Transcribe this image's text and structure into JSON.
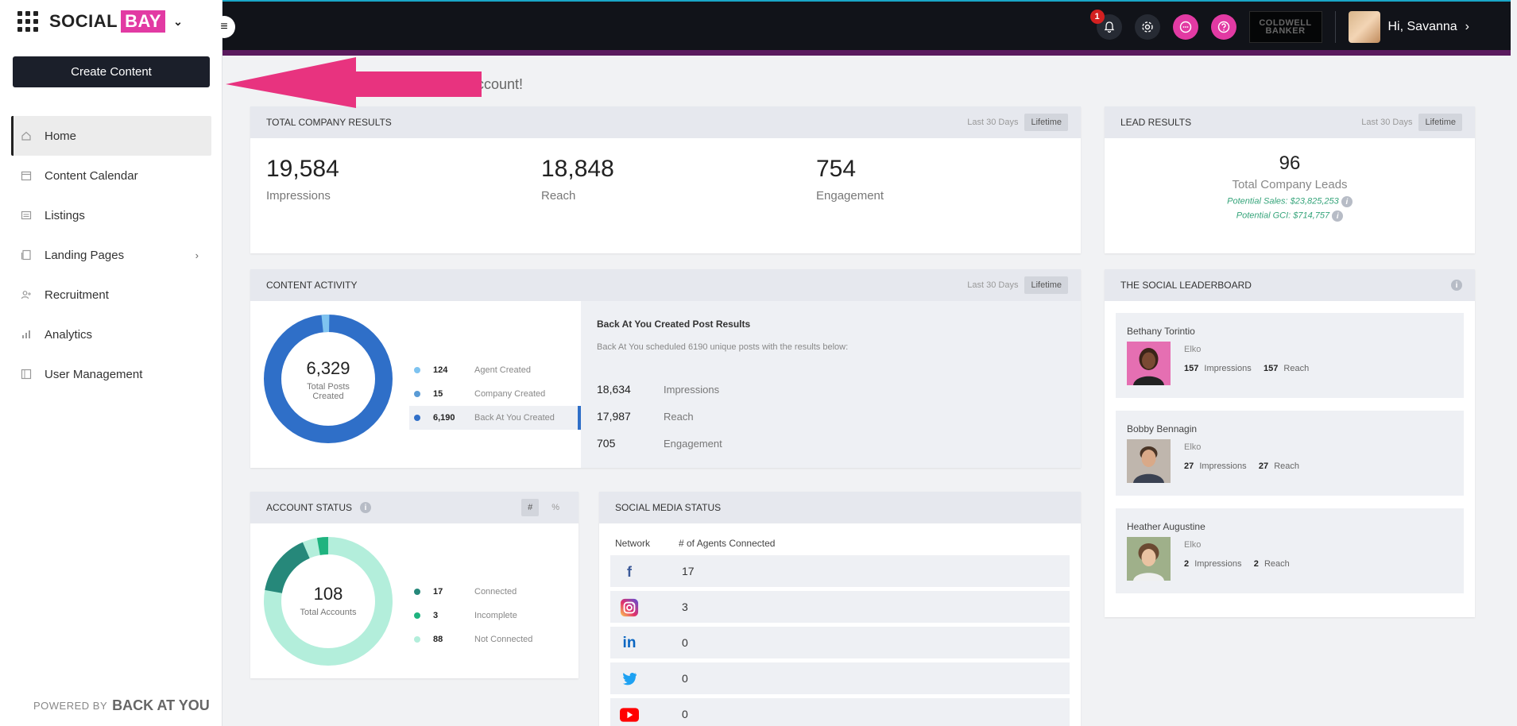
{
  "header": {
    "notification_count": "1",
    "brand_logo_text": "COLDWELL BANKER",
    "greeting": "Hi, Savanna"
  },
  "sidebar": {
    "logo_word1": "SOCIAL",
    "logo_word2": "BAY",
    "create_button": "Create Content",
    "items": [
      {
        "label": "Home"
      },
      {
        "label": "Content Calendar"
      },
      {
        "label": "Listings"
      },
      {
        "label": "Landing Pages"
      },
      {
        "label": "Recruitment"
      },
      {
        "label": "Analytics"
      },
      {
        "label": "User Management"
      }
    ],
    "powered_by": "POWERED BY",
    "powered_brand": "BACK AT YOU"
  },
  "welcome_text": "ccount!",
  "company_results": {
    "title": "TOTAL COMPANY RESULTS",
    "range_30": "Last 30 Days",
    "range_life": "Lifetime",
    "impressions": "19,584",
    "impressions_label": "Impressions",
    "reach": "18,848",
    "reach_label": "Reach",
    "engagement": "754",
    "engagement_label": "Engagement"
  },
  "lead_results": {
    "title": "LEAD RESULTS",
    "range_30": "Last 30 Days",
    "range_life": "Lifetime",
    "total": "96",
    "total_label": "Total Company Leads",
    "potential_sales": "Potential Sales: $23,825,253",
    "potential_gci": "Potential GCI: $714,757"
  },
  "content_activity": {
    "title": "CONTENT ACTIVITY",
    "range_30": "Last 30 Days",
    "range_life": "Lifetime",
    "donut_total": "6,329",
    "donut_label1": "Total Posts",
    "donut_label2": "Created",
    "legend": [
      {
        "value": "124",
        "label": "Agent Created",
        "color": "#7ec3f0"
      },
      {
        "value": "15",
        "label": "Company Created",
        "color": "#5a9bd5"
      },
      {
        "value": "6,190",
        "label": "Back At You Created",
        "color": "#2f6fc8"
      }
    ],
    "bay_title": "Back At You Created Post Results",
    "bay_sub": "Back At You scheduled 6190 unique posts with the results below:",
    "bay_stats": [
      {
        "value": "18,634",
        "label": "Impressions"
      },
      {
        "value": "17,987",
        "label": "Reach"
      },
      {
        "value": "705",
        "label": "Engagement"
      }
    ]
  },
  "account_status": {
    "title": "ACCOUNT STATUS",
    "toggle_num": "#",
    "toggle_pct": "%",
    "donut_total": "108",
    "donut_label": "Total Accounts",
    "legend": [
      {
        "value": "17",
        "label": "Connected",
        "color": "#26887a"
      },
      {
        "value": "3",
        "label": "Incomplete",
        "color": "#1fb37f"
      },
      {
        "value": "88",
        "label": "Not Connected",
        "color": "#b3eedb"
      }
    ]
  },
  "social_media_status": {
    "title": "SOCIAL MEDIA STATUS",
    "col_network": "Network",
    "col_agents": "# of Agents Connected",
    "rows": [
      {
        "network": "facebook",
        "count": "17"
      },
      {
        "network": "instagram",
        "count": "3"
      },
      {
        "network": "linkedin",
        "count": "0"
      },
      {
        "network": "twitter",
        "count": "0"
      },
      {
        "network": "youtube",
        "count": "0"
      }
    ]
  },
  "leaderboard": {
    "title": "THE SOCIAL LEADERBOARD",
    "agents": [
      {
        "name": "Bethany Torintio",
        "office": "Elko",
        "impressions": "157",
        "reach": "157",
        "impressions_label": "Impressions",
        "reach_label": "Reach"
      },
      {
        "name": "Bobby Bennagin",
        "office": "Elko",
        "impressions": "27",
        "reach": "27",
        "impressions_label": "Impressions",
        "reach_label": "Reach"
      },
      {
        "name": "Heather Augustine",
        "office": "Elko",
        "impressions": "2",
        "reach": "2",
        "impressions_label": "Impressions",
        "reach_label": "Reach"
      }
    ]
  }
}
